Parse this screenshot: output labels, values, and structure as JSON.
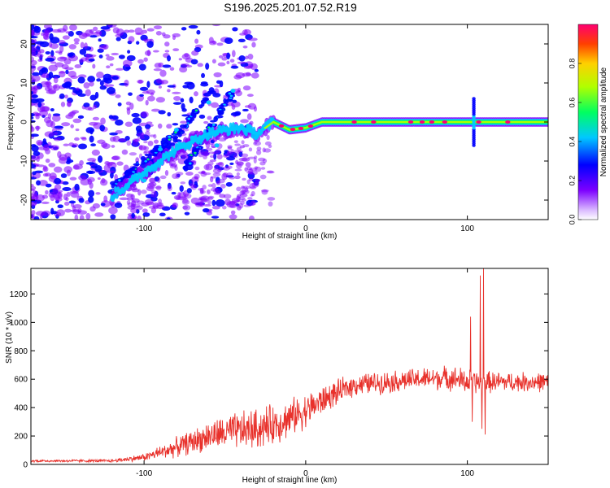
{
  "title": "S196.2025.201.07.52.R19",
  "chart_data": [
    {
      "type": "heatmap",
      "xlabel": "Height of straight line (km)",
      "ylabel": "Frequency (Hz)",
      "xlim": [
        -170,
        150
      ],
      "ylim": [
        -25,
        25
      ],
      "xticks": [
        -100,
        0,
        100
      ],
      "yticks": [
        -20,
        -10,
        0,
        10,
        20
      ],
      "colorbar": {
        "label": "Normalized spectral amplitude",
        "range": [
          0,
          1
        ],
        "ticks": [
          "0.0",
          "0.2",
          "0.4",
          "0.6",
          "0.8"
        ]
      },
      "ridge": [
        {
          "x": -110,
          "f": -16
        },
        {
          "x": -100,
          "f": -13
        },
        {
          "x": -90,
          "f": -10
        },
        {
          "x": -80,
          "f": -7
        },
        {
          "x": -70,
          "f": -5
        },
        {
          "x": -60,
          "f": -3
        },
        {
          "x": -50,
          "f": -2
        },
        {
          "x": -40,
          "f": -1.5
        },
        {
          "x": -30,
          "f": -3
        },
        {
          "x": -20,
          "f": 0
        },
        {
          "x": -10,
          "f": -2
        },
        {
          "x": 0,
          "f": -1.5
        },
        {
          "x": 10,
          "f": 0
        },
        {
          "x": 50,
          "f": 0
        },
        {
          "x": 100,
          "f": 0
        },
        {
          "x": 150,
          "f": 0
        }
      ],
      "branches": [
        {
          "x": [
            -100,
            -60
          ],
          "f": [
            -14,
            7
          ]
        },
        {
          "x": [
            -75,
            -45
          ],
          "f": [
            -12,
            8
          ]
        },
        {
          "x": [
            -120,
            -80
          ],
          "f": [
            -17,
            -3
          ]
        }
      ],
      "burst": {
        "x": 104,
        "f": [
          -6,
          6
        ]
      }
    },
    {
      "type": "line",
      "xlabel": "Height of straight line (km)",
      "ylabel": "SNR (10 * v/v)",
      "xlim": [
        -170,
        150
      ],
      "ylim": [
        0,
        1380
      ],
      "xticks": [
        -100,
        0,
        100
      ],
      "yticks": [
        0,
        200,
        400,
        600,
        800,
        1000,
        1200
      ],
      "color": "#e8312b",
      "envelope": [
        {
          "x": -170,
          "mean": 25,
          "amp": 10
        },
        {
          "x": -120,
          "mean": 25,
          "amp": 12
        },
        {
          "x": -100,
          "mean": 50,
          "amp": 30
        },
        {
          "x": -80,
          "mean": 120,
          "amp": 80
        },
        {
          "x": -60,
          "mean": 200,
          "amp": 120
        },
        {
          "x": -45,
          "mean": 230,
          "amp": 150
        },
        {
          "x": -30,
          "mean": 250,
          "amp": 170
        },
        {
          "x": -15,
          "mean": 300,
          "amp": 160
        },
        {
          "x": 0,
          "mean": 380,
          "amp": 140
        },
        {
          "x": 15,
          "mean": 480,
          "amp": 110
        },
        {
          "x": 30,
          "mean": 560,
          "amp": 90
        },
        {
          "x": 50,
          "mean": 580,
          "amp": 90
        },
        {
          "x": 70,
          "mean": 600,
          "amp": 90
        },
        {
          "x": 90,
          "mean": 610,
          "amp": 100
        },
        {
          "x": 100,
          "mean": 580,
          "amp": 110
        },
        {
          "x": 110,
          "mean": 580,
          "amp": 90
        },
        {
          "x": 130,
          "mean": 580,
          "amp": 80
        },
        {
          "x": 150,
          "mean": 580,
          "amp": 80
        }
      ],
      "spikes": [
        {
          "x": 102,
          "y": 1040
        },
        {
          "x": 103,
          "y": 300
        },
        {
          "x": 108,
          "y": 1330
        },
        {
          "x": 109,
          "y": 250
        },
        {
          "x": 110,
          "y": 1380
        },
        {
          "x": 111,
          "y": 210
        }
      ]
    }
  ]
}
